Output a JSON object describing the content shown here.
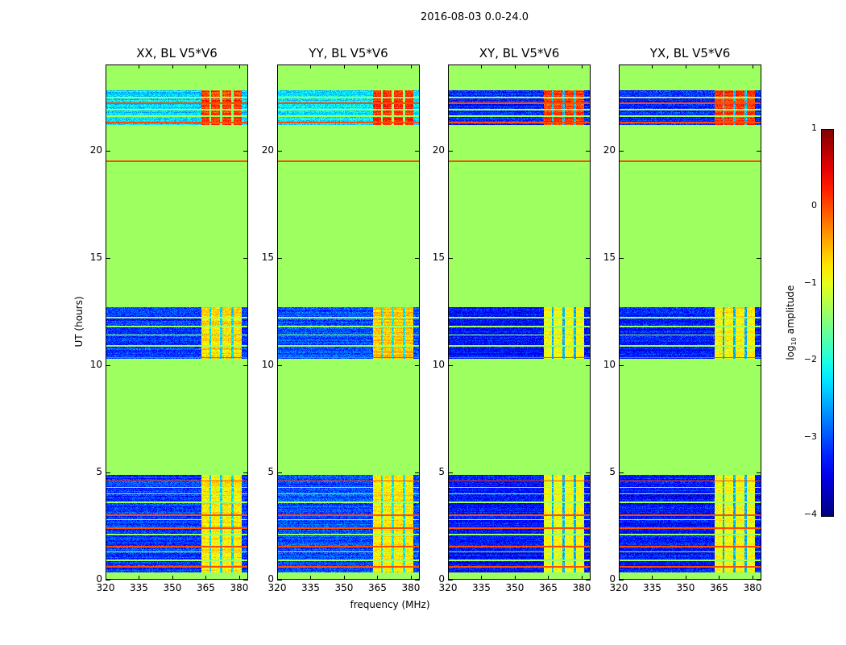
{
  "chart_data": {
    "type": "heatmap",
    "suptitle": "2016-08-03 0.0-24.0",
    "xlabel": "frequency (MHz)",
    "ylabel": "UT (hours)",
    "xlim": [
      320,
      384
    ],
    "ylim": [
      0,
      24
    ],
    "xticks": [
      "320",
      "335",
      "350",
      "365",
      "380"
    ],
    "xtick_values": [
      320,
      335,
      350,
      365,
      380
    ],
    "yticks": [
      "0",
      "5",
      "10",
      "15",
      "20"
    ],
    "ytick_values": [
      0,
      5,
      10,
      15,
      20
    ],
    "colorbar": {
      "label_main": "log",
      "label_sub": "10",
      "label_rest": " amplitude",
      "vmin": -4,
      "vmax": 1,
      "ticks": [
        "−4",
        "−3",
        "−2",
        "−1",
        "0",
        "1"
      ],
      "tick_values": [
        -4,
        -3,
        -2,
        -1,
        0,
        1
      ],
      "colormap": "jet"
    },
    "background_level": -1.35,
    "rfi_band_mhz": [
      363,
      381
    ],
    "rfi_gaps_mhz": [
      367,
      372,
      377
    ],
    "orange_lines_hours": [
      0.6,
      1.55,
      2.4,
      3.0,
      4.6,
      10.35,
      19.5,
      21.3,
      22.2
    ],
    "flag_lines_hours": [
      0.3,
      0.9,
      1.3,
      2.1,
      2.8,
      3.6,
      4.0,
      4.3,
      10.9,
      11.4,
      11.8,
      12.2,
      21.6,
      21.9,
      22.45
    ],
    "panels": [
      {
        "title": "XX, BL V5*V6",
        "segments": [
          {
            "start": 0.3,
            "end": 4.9,
            "noise": -3.1,
            "rfi": -0.8
          },
          {
            "start": 10.3,
            "end": 12.7,
            "noise": -3.1,
            "rfi": -0.7
          },
          {
            "start": 21.2,
            "end": 22.8,
            "noise": -2.3,
            "rfi": 0.1
          }
        ]
      },
      {
        "title": "YY, BL V5*V6",
        "segments": [
          {
            "start": 0.3,
            "end": 4.9,
            "noise": -3.0,
            "rfi": -0.8
          },
          {
            "start": 10.3,
            "end": 12.7,
            "noise": -3.0,
            "rfi": -0.6
          },
          {
            "start": 21.2,
            "end": 22.8,
            "noise": -2.2,
            "rfi": 0.2
          }
        ]
      },
      {
        "title": "XY, BL V5*V6",
        "segments": [
          {
            "start": 0.3,
            "end": 4.9,
            "noise": -3.3,
            "rfi": -0.95
          },
          {
            "start": 10.3,
            "end": 12.7,
            "noise": -3.3,
            "rfi": -0.9
          },
          {
            "start": 21.2,
            "end": 22.8,
            "noise": -3.2,
            "rfi": 0.1
          }
        ]
      },
      {
        "title": "YX, BL V5*V6",
        "segments": [
          {
            "start": 0.3,
            "end": 4.9,
            "noise": -3.3,
            "rfi": -0.95
          },
          {
            "start": 10.3,
            "end": 12.7,
            "noise": -3.3,
            "rfi": -0.9
          },
          {
            "start": 21.2,
            "end": 22.8,
            "noise": -3.2,
            "rfi": 0.1
          }
        ]
      }
    ]
  }
}
